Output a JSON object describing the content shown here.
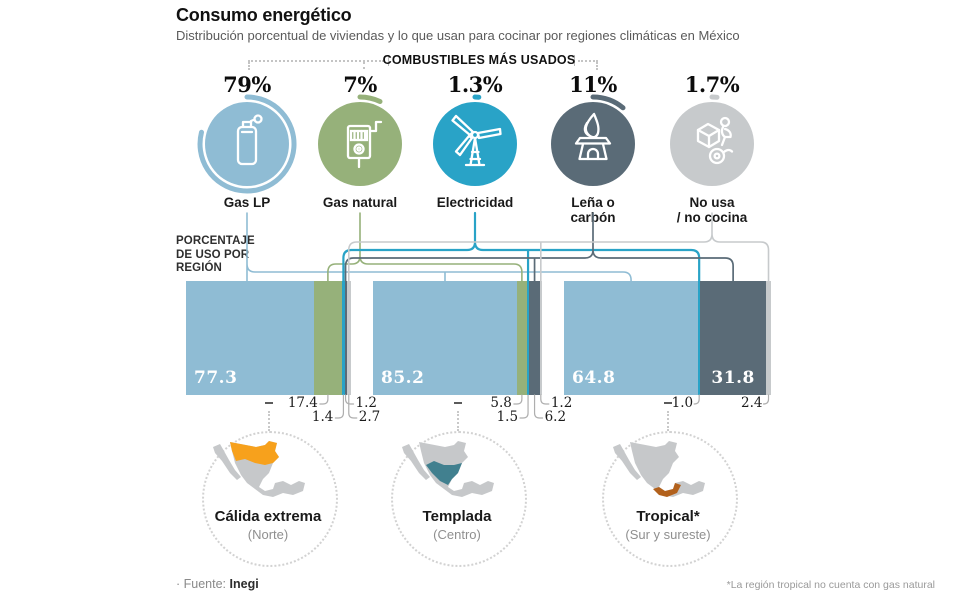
{
  "title": "Consumo energético",
  "subtitle": "Distribución porcentual de viviendas y lo que usan para cocinar por regiones climáticas en México",
  "section_header": "COMBUSTIBLES MÁS USADOS",
  "usage_label_lines": [
    "PORCENTAJE",
    "DE USO POR",
    "REGIÓN"
  ],
  "fuels": [
    {
      "id": "gas-lp",
      "label_lines": [
        "Gas LP"
      ],
      "pct_label": "79%",
      "pct": 79,
      "color": "#8fbcd4",
      "icon": "gas-cylinder-icon"
    },
    {
      "id": "gas-natural",
      "label_lines": [
        "Gas natural"
      ],
      "pct_label": "7%",
      "pct": 7,
      "color": "#96b17a",
      "icon": "gas-meter-icon"
    },
    {
      "id": "electricidad",
      "label_lines": [
        "Electricidad"
      ],
      "pct_label": "1.3%",
      "pct": 1.3,
      "color": "#29a3c7",
      "icon": "wind-turbine-icon"
    },
    {
      "id": "lena",
      "label_lines": [
        "Leña o",
        "carbón"
      ],
      "pct_label": "11%",
      "pct": 11,
      "color": "#5a6b77",
      "icon": "charcoal-stove-icon"
    },
    {
      "id": "no-usa",
      "label_lines": [
        "No usa",
        "/ no cocina"
      ],
      "pct_label": "1.7%",
      "pct": 1.7,
      "color": "#c7cacc",
      "icon": "delivery-motorcycle-icon"
    }
  ],
  "chart_data": {
    "type": "bar",
    "stacked": true,
    "orientation": "horizontal",
    "unit": "percent",
    "title": "Consumo energético",
    "subtitle": "Distribución porcentual de viviendas y lo que usan para cocinar por regiones climáticas en México",
    "categories": [
      "Cálida extrema (Norte)",
      "Templada (Centro)",
      "Tropical (Sur y sureste)"
    ],
    "series": [
      {
        "name": "Gas LP",
        "values": [
          77.3,
          85.2,
          64.8
        ]
      },
      {
        "name": "Gas natural",
        "values": [
          17.4,
          5.8,
          0
        ]
      },
      {
        "name": "Electricidad",
        "values": [
          1.4,
          1.5,
          1.0
        ]
      },
      {
        "name": "Leña o carbón",
        "values": [
          1.2,
          6.2,
          31.8
        ]
      },
      {
        "name": "No usa / no cocina",
        "values": [
          2.7,
          1.2,
          2.4
        ]
      }
    ],
    "national_share": {
      "Gas LP": 79,
      "Gas natural": 7,
      "Electricidad": 1.3,
      "Leña o carbón": 11,
      "No usa / no cocina": 1.7
    },
    "legend_position": "top",
    "grid": false,
    "note": "*La región tropical no cuenta con gas natural"
  },
  "bars": [
    {
      "inside_labels": [
        {
          "text": "77.3",
          "fuel": "gas-lp",
          "align": "left"
        }
      ],
      "callouts": [
        {
          "text": "17.4",
          "fuel": "gas-natural",
          "row": 0,
          "side": "left"
        },
        {
          "text": "1.4",
          "fuel": "electricidad",
          "row": 1,
          "side": "left"
        },
        {
          "text": "1.2",
          "fuel": "lena",
          "row": 0,
          "side": "right"
        },
        {
          "text": "2.7",
          "fuel": "no-usa",
          "row": 1,
          "side": "right"
        }
      ]
    },
    {
      "inside_labels": [
        {
          "text": "85.2",
          "fuel": "gas-lp",
          "align": "left"
        }
      ],
      "callouts": [
        {
          "text": "5.8",
          "fuel": "gas-natural",
          "row": 0,
          "side": "left"
        },
        {
          "text": "1.5",
          "fuel": "electricidad",
          "row": 1,
          "side": "left"
        },
        {
          "text": "1.2",
          "fuel": "no-usa",
          "row": 0,
          "side": "right"
        },
        {
          "text": "6.2",
          "fuel": "lena",
          "row": 1,
          "side": "right"
        }
      ]
    },
    {
      "inside_labels": [
        {
          "text": "64.8",
          "fuel": "gas-lp",
          "align": "left"
        },
        {
          "text": "31.8",
          "fuel": "lena",
          "align": "center"
        }
      ],
      "callouts": [
        {
          "text": "1.0",
          "fuel": "electricidad",
          "row": 0,
          "side": "left"
        },
        {
          "text": "2.4",
          "fuel": "no-usa",
          "row": 0,
          "side": "left"
        }
      ]
    }
  ],
  "maps": [
    {
      "name": "Cálida extrema",
      "subtitle": "(Norte)",
      "region": "norte",
      "highlight_color": "#f7a11c"
    },
    {
      "name": "Templada",
      "subtitle": "(Centro)",
      "region": "centro",
      "highlight_color": "#41808f"
    },
    {
      "name": "Tropical*",
      "subtitle": "(Sur y sureste)",
      "region": "sur",
      "highlight_color": "#b2611c"
    }
  ],
  "footer": {
    "source_prefix": "· Fuente:",
    "source_name": "Inegi",
    "footnote": "*La región tropical no cuenta con gas natural"
  }
}
